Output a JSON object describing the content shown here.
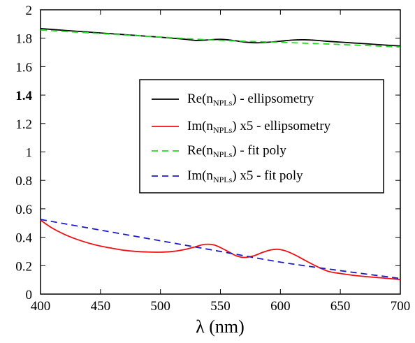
{
  "chart_data": {
    "type": "line",
    "title": "",
    "xlabel": "λ (nm)",
    "ylabel": "",
    "xlim": [
      400,
      700
    ],
    "ylim": [
      0,
      2
    ],
    "x_ticks": [
      "400",
      "450",
      "500",
      "550",
      "600",
      "650",
      "700"
    ],
    "y_ticks": [
      "0",
      "0.2",
      "0.4",
      "0.6",
      "0.8",
      "1",
      "1.2",
      "1.4",
      "1.6",
      "1.8",
      "2"
    ],
    "grid": false,
    "legend_position": "center-right",
    "series": [
      {
        "name_main": "Re(n",
        "name_sub": "NPLs",
        "name_rest": ") - ellipsometry",
        "color": "#000000",
        "dash": "solid",
        "x": [
          400,
          420,
          440,
          460,
          480,
          500,
          520,
          530,
          540,
          550,
          560,
          570,
          580,
          590,
          600,
          610,
          620,
          630,
          640,
          660,
          680,
          700
        ],
        "y": [
          1.868,
          1.855,
          1.843,
          1.831,
          1.819,
          1.807,
          1.793,
          1.784,
          1.788,
          1.792,
          1.785,
          1.773,
          1.768,
          1.772,
          1.779,
          1.787,
          1.789,
          1.785,
          1.778,
          1.767,
          1.756,
          1.745
        ]
      },
      {
        "name_main": "Im(n",
        "name_sub": "NPLs",
        "name_rest": ") x5 - ellipsometry",
        "color": "#ee1111",
        "dash": "solid",
        "x": [
          400,
          410,
          420,
          430,
          440,
          450,
          460,
          470,
          480,
          490,
          500,
          510,
          520,
          530,
          537,
          545,
          555,
          563,
          570,
          578,
          585,
          592,
          598,
          605,
          612,
          620,
          630,
          640,
          650,
          660,
          670,
          680,
          690,
          700
        ],
        "y": [
          0.52,
          0.463,
          0.42,
          0.386,
          0.359,
          0.338,
          0.322,
          0.308,
          0.3,
          0.296,
          0.295,
          0.3,
          0.313,
          0.335,
          0.35,
          0.345,
          0.306,
          0.27,
          0.258,
          0.27,
          0.293,
          0.311,
          0.315,
          0.302,
          0.276,
          0.24,
          0.196,
          0.16,
          0.145,
          0.133,
          0.124,
          0.117,
          0.11,
          0.102
        ]
      },
      {
        "name_main": "Re(n",
        "name_sub": "NPLs",
        "name_rest": ") - fit poly",
        "color": "#22dd22",
        "dash": "dashed",
        "x": [
          400,
          450,
          500,
          550,
          600,
          650,
          700
        ],
        "y": [
          1.858,
          1.833,
          1.808,
          1.785,
          1.771,
          1.756,
          1.738
        ]
      },
      {
        "name_main": "Im(n",
        "name_sub": "NPLs",
        "name_rest": ") x5 - fit poly",
        "color": "#1a1acc",
        "dash": "dashed",
        "x": [
          400,
          450,
          500,
          550,
          600,
          650,
          700
        ],
        "y": [
          0.525,
          0.45,
          0.375,
          0.3,
          0.225,
          0.165,
          0.11
        ]
      }
    ]
  }
}
